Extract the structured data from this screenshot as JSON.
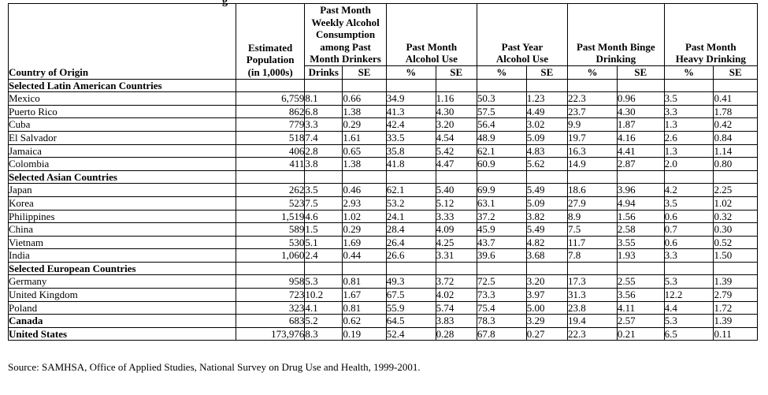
{
  "header": {
    "top_stub": "g",
    "country": "Country of Origin",
    "population": [
      "Estimated",
      "Population",
      "(in 1,000s)"
    ],
    "weekly": [
      "Past Month",
      "Weekly Alcohol",
      "Consumption",
      "among Past",
      "Month Drinkers"
    ],
    "month_use": [
      "Past Month",
      "Alcohol Use"
    ],
    "year_use": [
      "Past Year",
      "Alcohol Use"
    ],
    "binge": [
      "Past Month Binge",
      "Drinking"
    ],
    "heavy": [
      "Past Month",
      "Heavy Drinking"
    ],
    "sub": {
      "drinks": "Drinks",
      "se": "SE",
      "pct": "%"
    }
  },
  "sections": [
    {
      "title": "Selected Latin American Countries",
      "rows": [
        [
          "Mexico",
          "6,759",
          "8.1",
          "0.66",
          "34.9",
          "1.16",
          "50.3",
          "1.23",
          "22.3",
          "0.96",
          "3.5",
          "0.41"
        ],
        [
          "Puerto Rico",
          "862",
          "6.8",
          "1.38",
          "41.3",
          "4.30",
          "57.5",
          "4.49",
          "23.7",
          "4.30",
          "3.3",
          "1.78"
        ],
        [
          "Cuba",
          "779",
          "3.3",
          "0.29",
          "42.4",
          "3.20",
          "56.4",
          "3.02",
          "9.9",
          "1.87",
          "1.3",
          "0.42"
        ],
        [
          "El Salvador",
          "518",
          "7.4",
          "1.61",
          "33.5",
          "4.54",
          "48.9",
          "5.09",
          "19.7",
          "4.16",
          "2.6",
          "0.84"
        ],
        [
          "Jamaica",
          "406",
          "2.8",
          "0.65",
          "35.8",
          "5.42",
          "62.1",
          "4.83",
          "16.3",
          "4.41",
          "1.3",
          "1.14"
        ],
        [
          "Colombia",
          "411",
          "3.8",
          "1.38",
          "41.8",
          "4.47",
          "60.9",
          "5.62",
          "14.9",
          "2.87",
          "2.0",
          "0.80"
        ]
      ]
    },
    {
      "title": "Selected Asian Countries",
      "rows": [
        [
          "Japan",
          "262",
          "3.5",
          "0.46",
          "62.1",
          "5.40",
          "69.9",
          "5.49",
          "18.6",
          "3.96",
          "4.2",
          "2.25"
        ],
        [
          "Korea",
          "523",
          "7.5",
          "2.93",
          "53.2",
          "5.12",
          "63.1",
          "5.09",
          "27.9",
          "4.94",
          "3.5",
          "1.02"
        ],
        [
          "Philippines",
          "1,519",
          "4.6",
          "1.02",
          "24.1",
          "3.33",
          "37.2",
          "3.82",
          "8.9",
          "1.56",
          "0.6",
          "0.32"
        ],
        [
          "China",
          "589",
          "1.5",
          "0.29",
          "28.4",
          "4.09",
          "45.9",
          "5.49",
          "7.5",
          "2.58",
          "0.7",
          "0.30"
        ],
        [
          "Vietnam",
          "530",
          "5.1",
          "1.69",
          "26.4",
          "4.25",
          "43.7",
          "4.82",
          "11.7",
          "3.55",
          "0.6",
          "0.52"
        ],
        [
          "India",
          "1,060",
          "2.4",
          "0.44",
          "26.6",
          "3.31",
          "39.6",
          "3.68",
          "7.8",
          "1.93",
          "3.3",
          "1.50"
        ]
      ]
    },
    {
      "title": "Selected European Countries",
      "rows": [
        [
          "Germany",
          "958",
          "5.3",
          "0.81",
          "49.3",
          "3.72",
          "72.5",
          "3.20",
          "17.3",
          "2.55",
          "5.3",
          "1.39"
        ],
        [
          "United Kingdom",
          "723",
          "10.2",
          "1.67",
          "67.5",
          "4.02",
          "73.3",
          "3.97",
          "31.3",
          "3.56",
          "12.2",
          "2.79"
        ],
        [
          "Poland",
          "323",
          "4.1",
          "0.81",
          "55.9",
          "5.74",
          "75.4",
          "5.00",
          "23.8",
          "4.11",
          "4.4",
          "1.72"
        ]
      ]
    }
  ],
  "totals": [
    [
      "Canada",
      "683",
      "5.2",
      "0.62",
      "64.5",
      "3.83",
      "78.3",
      "3.29",
      "19.4",
      "2.57",
      "5.3",
      "1.39"
    ],
    [
      "United States",
      "173,976",
      "8.3",
      "0.19",
      "52.4",
      "0.28",
      "67.8",
      "0.27",
      "22.3",
      "0.21",
      "6.5",
      "0.11"
    ]
  ],
  "source": "Source:  SAMHSA, Office of Applied Studies, National Survey on Drug Use and Health, 1999-2001."
}
